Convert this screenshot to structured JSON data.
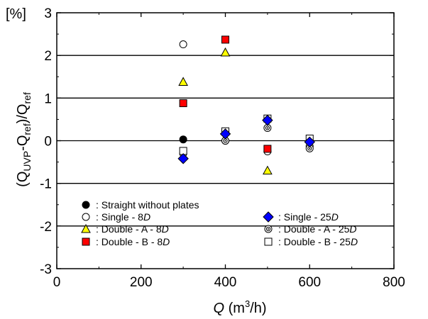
{
  "chart_data": {
    "type": "scatter",
    "title": "",
    "xlabel": {
      "var": "Q",
      "unit_pre": " (m",
      "unit_sup": "3",
      "unit_post": "/h)"
    },
    "ylabel": {
      "open": "(Q",
      "sub1": "UVP",
      "mid": "-Q",
      "sub2": "ref",
      "close": ")/Q",
      "sub3": "ref"
    },
    "yunit": "[%]",
    "xlim": [
      0,
      800
    ],
    "ylim": [
      -3,
      3
    ],
    "x_ticks": [
      "0",
      "200",
      "400",
      "600",
      "800"
    ],
    "y_ticks": [
      "-3",
      "-2",
      "-1",
      "0",
      "1",
      "2",
      "3"
    ],
    "grid": "horizontal",
    "legend_position": "lower-center",
    "series": [
      {
        "name": ": Straight without plates",
        "marker": "filled-circle",
        "color": "#000000",
        "x": [
          300
        ],
        "y": [
          0.03
        ]
      },
      {
        "name": ": Single - 8D",
        "marker": "open-circle",
        "color": "#000000",
        "x": [
          300,
          400,
          500,
          600
        ],
        "y": [
          2.26,
          0.0,
          -0.25,
          -0.13
        ]
      },
      {
        "name": ": Double - A - 8D",
        "marker": "triangle",
        "color": "#ffff00",
        "x": [
          300,
          400,
          500
        ],
        "y": [
          1.38,
          2.07,
          -0.7
        ]
      },
      {
        "name": ": Double - B - 8D",
        "marker": "square-filled",
        "color": "#ff0000",
        "x": [
          300,
          400,
          500
        ],
        "y": [
          0.88,
          2.37,
          -0.19
        ]
      },
      {
        "name": ": Single - 25D",
        "marker": "diamond",
        "color": "#0000ff",
        "x": [
          300,
          400,
          500,
          600
        ],
        "y": [
          -0.42,
          0.16,
          0.48,
          -0.03
        ]
      },
      {
        "name": ": Double - A - 25D",
        "marker": "bullseye",
        "color": "#000000",
        "x": [
          300,
          400,
          500,
          600
        ],
        "y": [
          -0.3,
          0.0,
          0.3,
          -0.18
        ]
      },
      {
        "name": ": Double - B - 25D",
        "marker": "open-square",
        "color": "#000000",
        "x": [
          300,
          400,
          500,
          600
        ],
        "y": [
          -0.24,
          0.22,
          0.52,
          0.05
        ]
      }
    ]
  }
}
